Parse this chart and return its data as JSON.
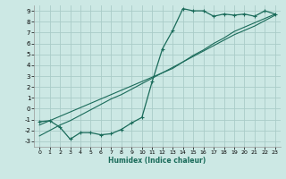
{
  "xlabel": "Humidex (Indice chaleur)",
  "bg_color": "#cce8e4",
  "grid_color": "#aaccc8",
  "line_color": "#1a6b5a",
  "xlim": [
    -0.5,
    23.5
  ],
  "ylim": [
    -3.5,
    9.5
  ],
  "xticks": [
    0,
    1,
    2,
    3,
    4,
    5,
    6,
    7,
    8,
    9,
    10,
    11,
    12,
    13,
    14,
    15,
    16,
    17,
    18,
    19,
    20,
    21,
    22,
    23
  ],
  "yticks": [
    -3,
    -2,
    -1,
    0,
    1,
    2,
    3,
    4,
    5,
    6,
    7,
    8,
    9
  ],
  "x_humidex": [
    0,
    1,
    2,
    3,
    4,
    5,
    6,
    7,
    8,
    9,
    10,
    11,
    12,
    13,
    14,
    15,
    16,
    17,
    18,
    19,
    20,
    21,
    22,
    23
  ],
  "y_main": [
    -1.2,
    -1.1,
    -1.7,
    -2.8,
    -2.2,
    -2.2,
    -2.4,
    -2.3,
    -1.9,
    -1.3,
    -0.8,
    2.5,
    5.5,
    7.2,
    9.2,
    9.0,
    9.0,
    8.5,
    8.7,
    8.6,
    8.7,
    8.5,
    9.0,
    8.7
  ],
  "y_line1": [
    -1.5,
    -1.1,
    -0.7,
    -0.3,
    0.1,
    0.5,
    0.9,
    1.3,
    1.7,
    2.1,
    2.5,
    2.9,
    3.3,
    3.7,
    4.3,
    4.9,
    5.4,
    6.0,
    6.5,
    7.1,
    7.5,
    7.9,
    8.3,
    8.7
  ],
  "y_line2": [
    -2.5,
    -2.0,
    -1.5,
    -1.1,
    -0.6,
    -0.1,
    0.4,
    0.9,
    1.3,
    1.8,
    2.3,
    2.8,
    3.3,
    3.8,
    4.3,
    4.8,
    5.3,
    5.8,
    6.3,
    6.8,
    7.2,
    7.6,
    8.1,
    8.6
  ]
}
